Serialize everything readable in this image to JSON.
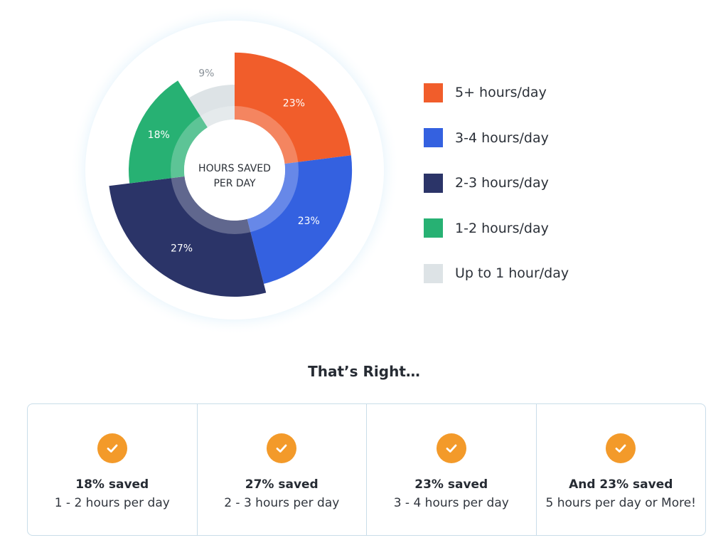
{
  "chart_data": {
    "type": "pie",
    "center_label": [
      "HOURS SAVED",
      "PER DAY"
    ],
    "slices": [
      {
        "label": "5+ hours/day",
        "value": 23,
        "display": "23%",
        "color": "#f15d2b"
      },
      {
        "label": "3-4 hours/day",
        "value": 23,
        "display": "23%",
        "color": "#3461e0"
      },
      {
        "label": "2-3 hours/day",
        "value": 27,
        "display": "27%",
        "color": "#2b3468"
      },
      {
        "label": "1-2 hours/day",
        "value": 18,
        "display": "18%",
        "color": "#27b173"
      },
      {
        "label": "Up to 1 hour/day",
        "value": 9,
        "display": "9%",
        "color": "#dde3e6"
      }
    ],
    "legend_position": "right"
  },
  "headline": "That’s Right…",
  "cards": [
    {
      "title": "18% saved",
      "subtitle": "1 - 2 hours per day"
    },
    {
      "title": "27% saved",
      "subtitle": "2 - 3 hours per day"
    },
    {
      "title": "23% saved",
      "subtitle": "3 - 4 hours per day"
    },
    {
      "title": "And 23% saved",
      "subtitle": "5 hours per day or More!"
    }
  ],
  "icons": {
    "check": "check-circle-icon"
  },
  "colors": {
    "accent": "#f39a2a",
    "card_border": "#c9dde9"
  }
}
